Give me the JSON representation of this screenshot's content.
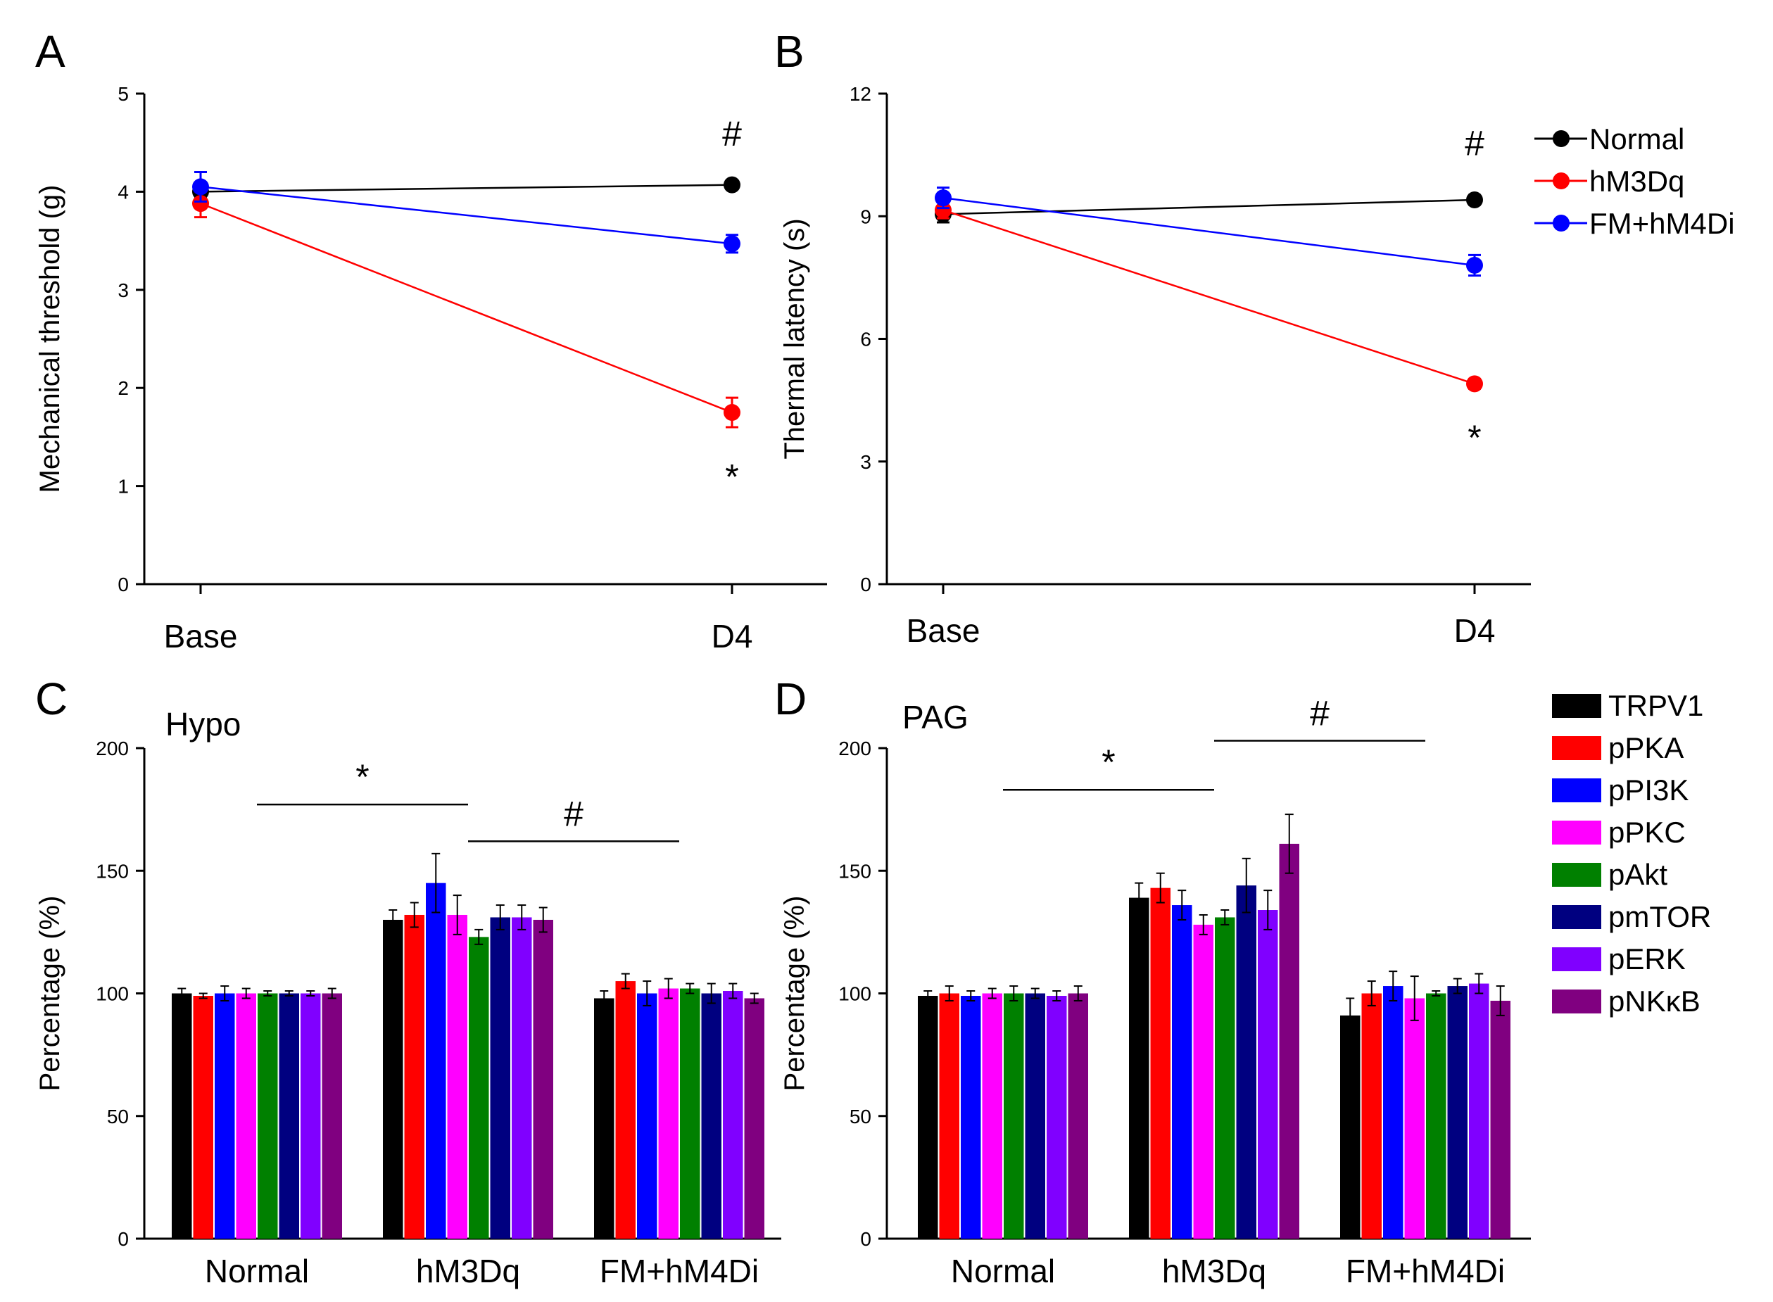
{
  "chart_data": [
    {
      "panel": "A",
      "type": "line",
      "ylabel": "Mechanical threshold (g)",
      "categories": [
        "Base",
        "D4"
      ],
      "ylim": [
        0,
        5
      ],
      "yticks": [
        0,
        1,
        2,
        3,
        4,
        5
      ],
      "series": [
        {
          "name": "Normal",
          "color": "#000000",
          "values": [
            4.0,
            4.07
          ],
          "errors": [
            0.05,
            0.04
          ]
        },
        {
          "name": "hM3Dq",
          "color": "#ff0000",
          "values": [
            3.88,
            1.75
          ],
          "errors": [
            0.14,
            0.15
          ]
        },
        {
          "name": "FM+hM4Di",
          "color": "#0000ff",
          "values": [
            4.05,
            3.47
          ],
          "errors": [
            0.15,
            0.09
          ]
        }
      ],
      "annotations": [
        {
          "text": "#",
          "category": "D4",
          "y": 4.6
        },
        {
          "text": "*",
          "category": "D4",
          "y": 1.1
        }
      ]
    },
    {
      "panel": "B",
      "type": "line",
      "ylabel": "Thermal latency (s)",
      "categories": [
        "Base",
        "D4"
      ],
      "ylim": [
        0,
        12
      ],
      "yticks": [
        0,
        3,
        6,
        9,
        12
      ],
      "series": [
        {
          "name": "Normal",
          "color": "#000000",
          "values": [
            9.05,
            9.4
          ],
          "errors": [
            0.2,
            0.12
          ]
        },
        {
          "name": "hM3Dq",
          "color": "#ff0000",
          "values": [
            9.15,
            4.9
          ],
          "errors": [
            0.2,
            0.12
          ]
        },
        {
          "name": "FM+hM4Di",
          "color": "#0000ff",
          "values": [
            9.45,
            7.8
          ],
          "errors": [
            0.25,
            0.25
          ]
        }
      ],
      "annotations": [
        {
          "text": "#",
          "category": "D4",
          "y": 10.8
        },
        {
          "text": "*",
          "category": "D4",
          "y": 3.6
        }
      ]
    },
    {
      "panel": "C",
      "type": "bar",
      "title": "Hypo",
      "ylabel": "Percentage (%)",
      "categories": [
        "Normal",
        "hM3Dq",
        "FM+hM4Di"
      ],
      "ylim": [
        0,
        200
      ],
      "yticks": [
        0,
        50,
        100,
        150,
        200
      ],
      "series": [
        {
          "name": "TRPV1",
          "color": "#000000",
          "values": [
            100,
            130,
            98
          ],
          "errors": [
            2,
            4,
            3
          ]
        },
        {
          "name": "pPKA",
          "color": "#ff0000",
          "values": [
            99,
            132,
            105
          ],
          "errors": [
            1,
            5,
            3
          ]
        },
        {
          "name": "pPI3K",
          "color": "#0000ff",
          "values": [
            100,
            145,
            100
          ],
          "errors": [
            3,
            12,
            5
          ]
        },
        {
          "name": "pPKC",
          "color": "#ff00ff",
          "values": [
            100,
            132,
            102
          ],
          "errors": [
            2,
            8,
            4
          ]
        },
        {
          "name": "pAkt",
          "color": "#008000",
          "values": [
            100,
            123,
            102
          ],
          "errors": [
            1,
            3,
            2
          ]
        },
        {
          "name": "pmTOR",
          "color": "#000080",
          "values": [
            100,
            131,
            100
          ],
          "errors": [
            1,
            5,
            4
          ]
        },
        {
          "name": "pERK",
          "color": "#8000ff",
          "values": [
            100,
            131,
            101
          ],
          "errors": [
            1,
            5,
            3
          ]
        },
        {
          "name": "pNKκB",
          "color": "#800080",
          "values": [
            100,
            130,
            98
          ],
          "errors": [
            2,
            5,
            2
          ]
        }
      ],
      "significance": [
        {
          "text": "*",
          "from": "Normal",
          "to": "hM3Dq",
          "y": 177
        },
        {
          "text": "#",
          "from": "hM3Dq",
          "to": "FM+hM4Di",
          "y": 162
        }
      ]
    },
    {
      "panel": "D",
      "type": "bar",
      "title": "PAG",
      "ylabel": "Percentage (%)",
      "categories": [
        "Normal",
        "hM3Dq",
        "FM+hM4Di"
      ],
      "ylim": [
        0,
        200
      ],
      "yticks": [
        0,
        50,
        100,
        150,
        200
      ],
      "series": [
        {
          "name": "TRPV1",
          "color": "#000000",
          "values": [
            99,
            139,
            91
          ],
          "errors": [
            2,
            6,
            7
          ]
        },
        {
          "name": "pPKA",
          "color": "#ff0000",
          "values": [
            100,
            143,
            100
          ],
          "errors": [
            3,
            6,
            5
          ]
        },
        {
          "name": "pPI3K",
          "color": "#0000ff",
          "values": [
            99,
            136,
            103
          ],
          "errors": [
            2,
            6,
            6
          ]
        },
        {
          "name": "pPKC",
          "color": "#ff00ff",
          "values": [
            100,
            128,
            98
          ],
          "errors": [
            2,
            4,
            9
          ]
        },
        {
          "name": "pAkt",
          "color": "#008000",
          "values": [
            100,
            131,
            100
          ],
          "errors": [
            3,
            3,
            1
          ]
        },
        {
          "name": "pmTOR",
          "color": "#000080",
          "values": [
            100,
            144,
            103
          ],
          "errors": [
            2,
            11,
            3
          ]
        },
        {
          "name": "pERK",
          "color": "#8000ff",
          "values": [
            99,
            134,
            104
          ],
          "errors": [
            2,
            8,
            4
          ]
        },
        {
          "name": "pNKκB",
          "color": "#800080",
          "values": [
            100,
            161,
            97
          ],
          "errors": [
            3,
            12,
            6
          ]
        }
      ],
      "significance": [
        {
          "text": "*",
          "from": "Normal",
          "to": "hM3Dq",
          "y": 183
        },
        {
          "text": "#",
          "from": "hM3Dq",
          "to": "FM+hM4Di",
          "y": 203
        }
      ]
    }
  ]
}
